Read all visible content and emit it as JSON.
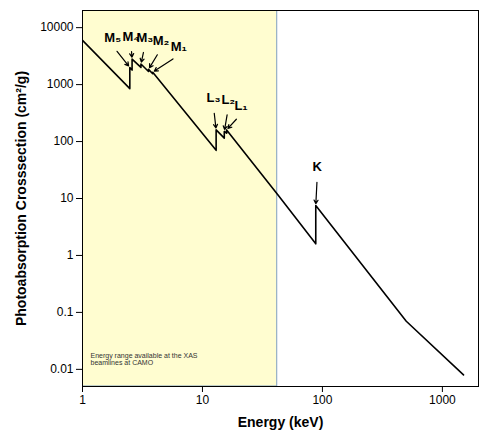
{
  "chart_data": {
    "type": "line",
    "x_label": "Energy (keV)",
    "y_label": "Photoabsorption Crosssection (cm²/g)",
    "log": true,
    "grid": false,
    "color": "#000000",
    "x": [
      1,
      2.48,
      2.48,
      2.59,
      2.59,
      3.07,
      3.07,
      3.55,
      3.55,
      3.85,
      3.85,
      13.0,
      13.0,
      15.2,
      15.2,
      15.9,
      15.9,
      42,
      88,
      88,
      500,
      1500
    ],
    "values": [
      6000,
      850,
      2000,
      1800,
      2800,
      2000,
      2300,
      1700,
      1850,
      1550,
      1650,
      70,
      160,
      115,
      150,
      140,
      160,
      12,
      1.6,
      7.5,
      0.07,
      0.008
    ],
    "xlim": [
      1,
      2000
    ],
    "ylim": [
      0.005,
      20000
    ],
    "xticks": [
      1,
      10,
      100,
      1000
    ],
    "yticks": [
      0.01,
      0.1,
      1,
      10,
      100,
      1000,
      10000
    ],
    "edges": [
      {
        "label": "M₅",
        "x": 2.48
      },
      {
        "label": "M₄",
        "x": 2.59
      },
      {
        "label": "M₃",
        "x": 3.07
      },
      {
        "label": "M₂",
        "x": 3.55
      },
      {
        "label": "M₁",
        "x": 3.85
      },
      {
        "label": "L₃",
        "x": 13.0
      },
      {
        "label": "L₂",
        "x": 15.2
      },
      {
        "label": "L₁",
        "x": 15.9
      },
      {
        "label": "K",
        "x": 88
      }
    ],
    "shaded_region": {
      "x": [
        1,
        42
      ],
      "color": "#fffdd0",
      "text": "Energy range available at the XAS\nbeamlines at CAMO"
    }
  }
}
